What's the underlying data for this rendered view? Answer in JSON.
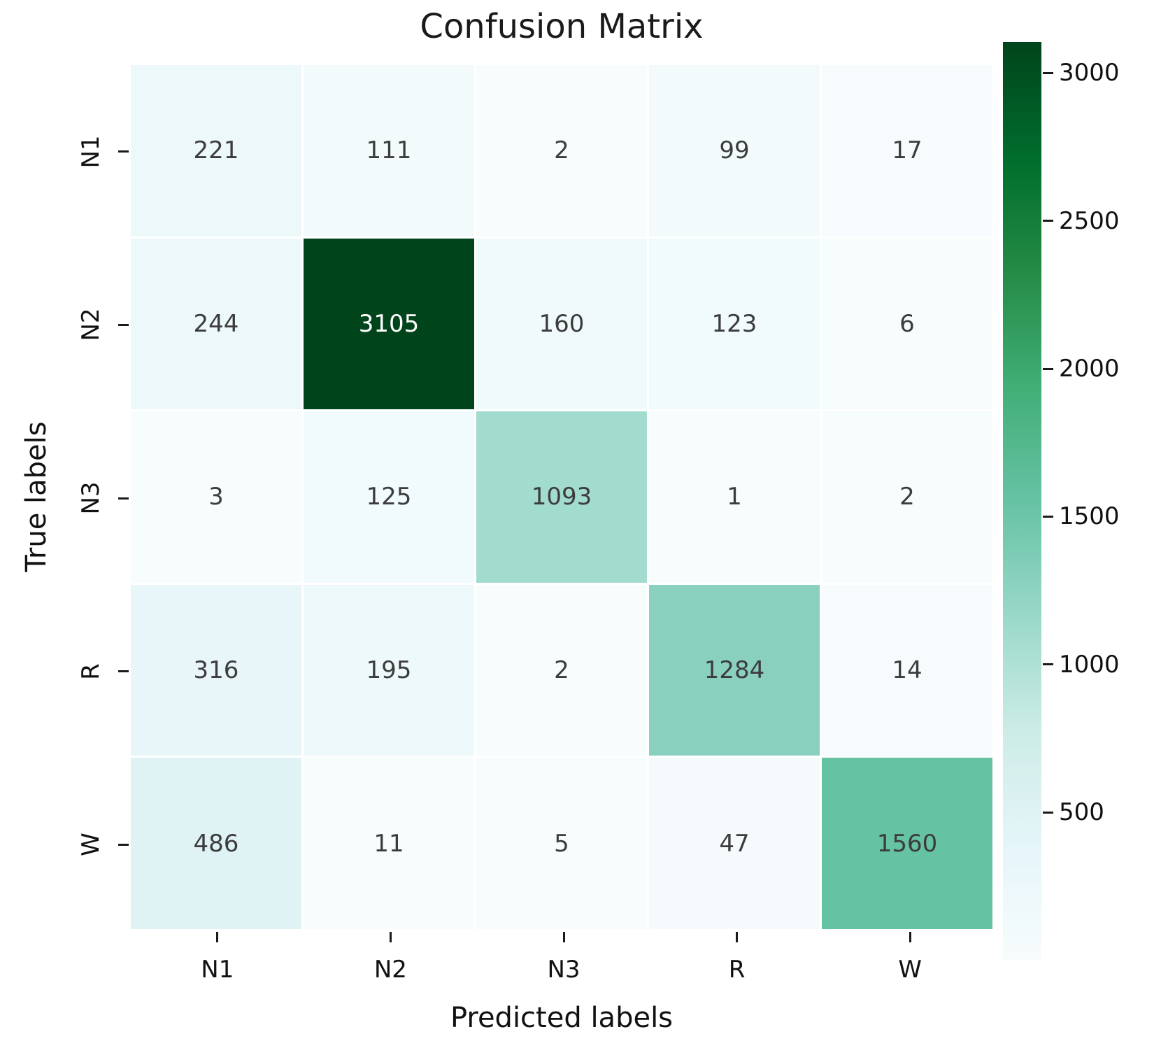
{
  "chart_data": {
    "type": "heatmap",
    "title": "Confusion Matrix",
    "xlabel": "Predicted labels",
    "ylabel": "True labels",
    "x_categories": [
      "N1",
      "N2",
      "N3",
      "R",
      "W"
    ],
    "y_categories": [
      "N1",
      "N2",
      "N3",
      "R",
      "W"
    ],
    "values": [
      [
        221,
        111,
        2,
        99,
        17
      ],
      [
        244,
        3105,
        160,
        123,
        6
      ],
      [
        3,
        125,
        1093,
        1,
        2
      ],
      [
        316,
        195,
        2,
        1284,
        14
      ],
      [
        486,
        11,
        5,
        47,
        1560
      ]
    ],
    "vmin": 1,
    "vmax": 3105,
    "colormap": "BuGn",
    "palette": [
      "#f7fcfd",
      "#e5f5f9",
      "#ccece6",
      "#99d8c9",
      "#66c2a4",
      "#41ae76",
      "#238b45",
      "#006d2c",
      "#00441b"
    ],
    "colorbar_ticks": [
      "3000",
      "2500",
      "2000",
      "1500",
      "1000",
      "500"
    ],
    "annotation_dark_color": "#3c3c3c",
    "annotation_light_color": "#ffffff",
    "legend_position": "right-colorbar",
    "grid": "white-cell-separators"
  }
}
